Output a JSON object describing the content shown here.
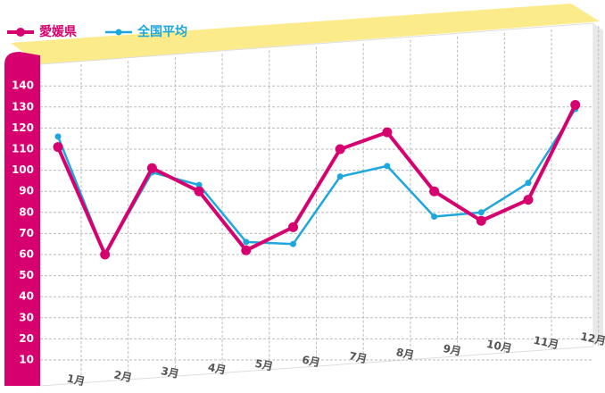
{
  "chart_data": {
    "type": "line",
    "categories": [
      "1月",
      "2月",
      "3月",
      "4月",
      "5月",
      "6月",
      "7月",
      "8月",
      "9月",
      "10月",
      "11月",
      "12月"
    ],
    "series": [
      {
        "name": "愛媛県",
        "color": "#d6006f",
        "values": [
          111,
          60,
          101,
          90,
          62,
          73,
          110,
          118,
          90,
          76,
          86,
          131
        ]
      },
      {
        "name": "全国平均",
        "color": "#1ea7dc",
        "values": [
          116,
          60,
          99,
          93,
          66,
          65,
          97,
          102,
          78,
          80,
          94,
          129
        ]
      }
    ],
    "ylim": [
      0,
      150
    ],
    "yticks": [
      10,
      20,
      30,
      40,
      50,
      60,
      70,
      80,
      90,
      100,
      110,
      120,
      130,
      140
    ],
    "grid": true,
    "legend": "top-left"
  }
}
